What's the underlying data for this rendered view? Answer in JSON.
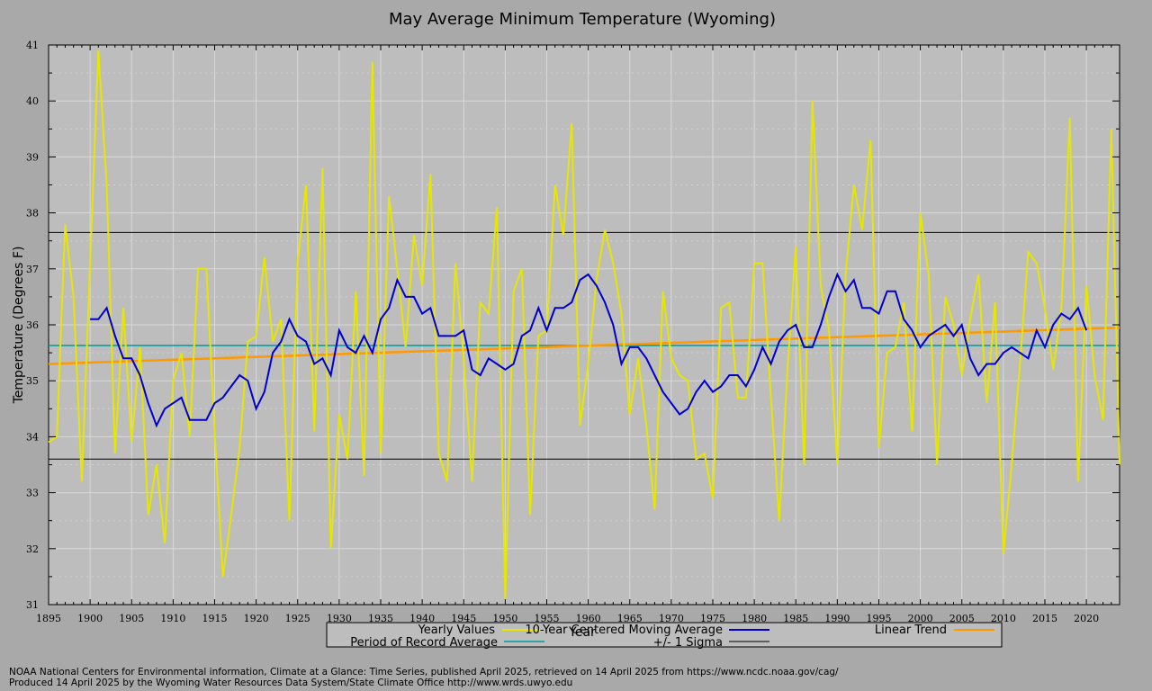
{
  "chart_data": {
    "type": "line",
    "title": "May Average Minimum Temperature (Wyoming)",
    "xlabel": "Year",
    "ylabel": "Temperature (Degrees F)",
    "xlim": [
      1895,
      2024
    ],
    "ylim": [
      31,
      41
    ],
    "x_ticks": [
      1895,
      1900,
      1905,
      1910,
      1915,
      1920,
      1925,
      1930,
      1935,
      1940,
      1945,
      1950,
      1955,
      1960,
      1965,
      1970,
      1975,
      1980,
      1985,
      1990,
      1995,
      2000,
      2005,
      2010,
      2015,
      2020
    ],
    "y_ticks": [
      31,
      32,
      33,
      34,
      35,
      36,
      37,
      38,
      39,
      40,
      41
    ],
    "grid": true,
    "series": [
      {
        "name": "Yearly Values",
        "color": "#e6e600",
        "x_start": 1895,
        "values": [
          33.9,
          34.0,
          37.8,
          36.5,
          33.2,
          37.1,
          40.9,
          38.5,
          33.7,
          36.3,
          33.9,
          35.6,
          32.6,
          33.5,
          32.1,
          35.0,
          35.5,
          34.0,
          37.0,
          37.0,
          34.1,
          31.5,
          32.6,
          33.8,
          35.7,
          35.8,
          37.2,
          35.7,
          36.1,
          32.5,
          37.1,
          38.5,
          34.1,
          38.8,
          32.0,
          34.4,
          33.6,
          36.6,
          33.3,
          40.7,
          33.7,
          38.3,
          37.0,
          35.6,
          37.6,
          36.7,
          38.7,
          33.7,
          33.2,
          37.1,
          35.4,
          33.2,
          36.4,
          36.2,
          38.1,
          31.1,
          36.6,
          37.0,
          32.6,
          35.8,
          35.9,
          38.5,
          37.6,
          39.6,
          34.2,
          35.3,
          36.8,
          37.7,
          37.1,
          36.2,
          34.4,
          35.4,
          34.2,
          32.7,
          36.6,
          35.4,
          35.1,
          35.0,
          33.6,
          33.7,
          32.9,
          36.3,
          36.4,
          34.7,
          34.7,
          37.1,
          37.1,
          34.7,
          32.5,
          35.2,
          37.4,
          33.5,
          40.0,
          36.7,
          35.9,
          33.5,
          36.9,
          38.5,
          37.7,
          39.3,
          33.8,
          35.5,
          35.6,
          36.4,
          34.1,
          38.0,
          36.9,
          33.5,
          36.5,
          36.0,
          35.1,
          36.1,
          36.9,
          34.6,
          36.4,
          31.9,
          33.5,
          35.3,
          37.3,
          37.1,
          36.3,
          35.2,
          36.3,
          39.7,
          33.2,
          36.7,
          35.1,
          34.3,
          39.5,
          33.5
        ]
      },
      {
        "name": "10-Year Centered Moving Average",
        "color": "#0000cc",
        "x_start": 1900,
        "values": [
          36.1,
          36.1,
          36.3,
          35.8,
          35.4,
          35.4,
          35.1,
          34.6,
          34.2,
          34.5,
          34.6,
          34.7,
          34.3,
          34.3,
          34.3,
          34.6,
          34.7,
          34.9,
          35.1,
          35.0,
          34.5,
          34.8,
          35.5,
          35.7,
          36.1,
          35.8,
          35.7,
          35.3,
          35.4,
          35.1,
          35.9,
          35.6,
          35.5,
          35.8,
          35.5,
          36.1,
          36.3,
          36.8,
          36.5,
          36.5,
          36.2,
          36.3,
          35.8,
          35.8,
          35.8,
          35.9,
          35.2,
          35.1,
          35.4,
          35.3,
          35.2,
          35.3,
          35.8,
          35.9,
          36.3,
          35.9,
          36.3,
          36.3,
          36.4,
          36.8,
          36.9,
          36.7,
          36.4,
          36.0,
          35.3,
          35.6,
          35.6,
          35.4,
          35.1,
          34.8,
          34.6,
          34.4,
          34.5,
          34.8,
          35.0,
          34.8,
          34.9,
          35.1,
          35.1,
          34.9,
          35.2,
          35.6,
          35.3,
          35.7,
          35.9,
          36.0,
          35.6,
          35.6,
          36.0,
          36.5,
          36.9,
          36.6,
          36.8,
          36.3,
          36.3,
          36.2,
          36.6,
          36.6,
          36.1,
          35.9,
          35.6,
          35.8,
          35.9,
          36.0,
          35.8,
          36.0,
          35.4,
          35.1,
          35.3,
          35.3,
          35.5,
          35.6,
          35.5,
          35.4,
          35.9,
          35.6,
          36.0,
          36.2,
          36.1,
          36.3,
          35.9
        ]
      },
      {
        "name": "Linear Trend",
        "color": "#ff9900",
        "x": [
          1895,
          2024
        ],
        "values": [
          35.3,
          35.95
        ]
      },
      {
        "name": "Period of Record Average",
        "color": "#009999",
        "x": [
          1895,
          2024
        ],
        "values": [
          35.63,
          35.63
        ]
      },
      {
        "name": "+/- 1 Sigma",
        "color": "#000000",
        "upper": 37.65,
        "lower": 33.6
      }
    ],
    "legend": {
      "placement": "bottom-center",
      "entries": [
        "Yearly Values",
        "10-Year Centered Moving Average",
        "Linear Trend",
        "Period of Record Average",
        "+/- 1 Sigma"
      ]
    }
  },
  "footer": {
    "line1": "NOAA National Centers for Environmental information, Climate at a Glance: Time Series, published April 2025, retrieved on 14 April 2025 from https://www.ncdc.noaa.gov/cag/",
    "line2": "Produced 14 April 2025 by the Wyoming Water Resources Data System/State Climate Office http://www.wrds.uwyo.edu"
  }
}
